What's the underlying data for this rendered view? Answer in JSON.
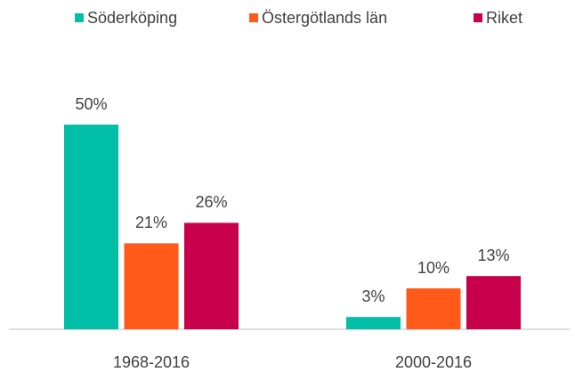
{
  "chart_data": {
    "type": "bar",
    "categories": [
      "1968-2016",
      "2000-2016"
    ],
    "series": [
      {
        "name": "Söderköping",
        "color": "#00bfa6",
        "values": [
          50,
          3
        ],
        "value_labels": [
          "50%",
          "3%"
        ]
      },
      {
        "name": "Östergötlands län",
        "color": "#ff5a1a",
        "values": [
          21,
          10
        ],
        "value_labels": [
          "21%",
          "10%"
        ]
      },
      {
        "name": "Riket",
        "color": "#c8004b",
        "values": [
          26,
          13
        ],
        "value_labels": [
          "26%",
          "13%"
        ]
      }
    ],
    "legend": "top"
  }
}
